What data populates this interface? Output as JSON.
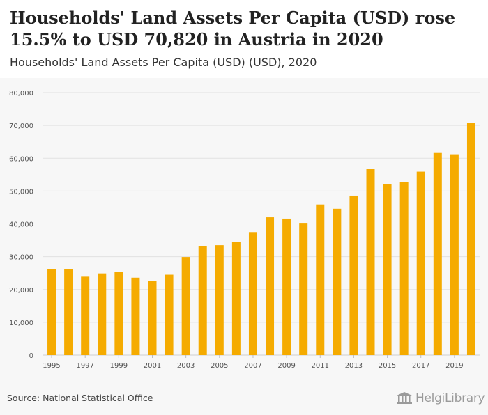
{
  "header": {
    "title": "Households' Land Assets Per Capita (USD) rose 15.5% to USD 70,820 in Austria in 2020",
    "subtitle": "Households' Land Assets Per Capita (USD) (USD), 2020"
  },
  "footer": {
    "source": "Source: National Statistical Office",
    "brand": "HelgiLibrary"
  },
  "colors": {
    "bar": "#f5ab00",
    "grid": "#e2e2e2",
    "axis_text": "#555555"
  },
  "chart_data": {
    "type": "bar",
    "title": "Households' Land Assets Per Capita (USD) rose 15.5% to USD 70,820 in Austria in 2020",
    "subtitle": "Households' Land Assets Per Capita (USD) (USD), 2020",
    "xlabel": "",
    "ylabel": "",
    "ylim": [
      0,
      80000
    ],
    "yticks": [
      0,
      10000,
      20000,
      30000,
      40000,
      50000,
      60000,
      70000,
      80000
    ],
    "ytick_labels": [
      "0",
      "10,000",
      "20,000",
      "30,000",
      "40,000",
      "50,000",
      "60,000",
      "70,000",
      "80,000"
    ],
    "grid": true,
    "legend": "none",
    "categories": [
      "1995",
      "1996",
      "1997",
      "1998",
      "1999",
      "2000",
      "2001",
      "2002",
      "2003",
      "2004",
      "2005",
      "2006",
      "2007",
      "2008",
      "2009",
      "2010",
      "2011",
      "2012",
      "2013",
      "2014",
      "2015",
      "2016",
      "2017",
      "2018",
      "2019",
      "2020"
    ],
    "xtick_labels": [
      "1995",
      "1997",
      "1999",
      "2001",
      "2003",
      "2005",
      "2007",
      "2009",
      "2011",
      "2013",
      "2015",
      "2017",
      "2019"
    ],
    "values": [
      26300,
      26200,
      23900,
      24900,
      25400,
      23600,
      22600,
      24500,
      29900,
      33300,
      33500,
      34500,
      37500,
      42000,
      41600,
      40300,
      45900,
      44600,
      48600,
      56700,
      52200,
      52700,
      55900,
      61600,
      61200,
      70820
    ]
  }
}
